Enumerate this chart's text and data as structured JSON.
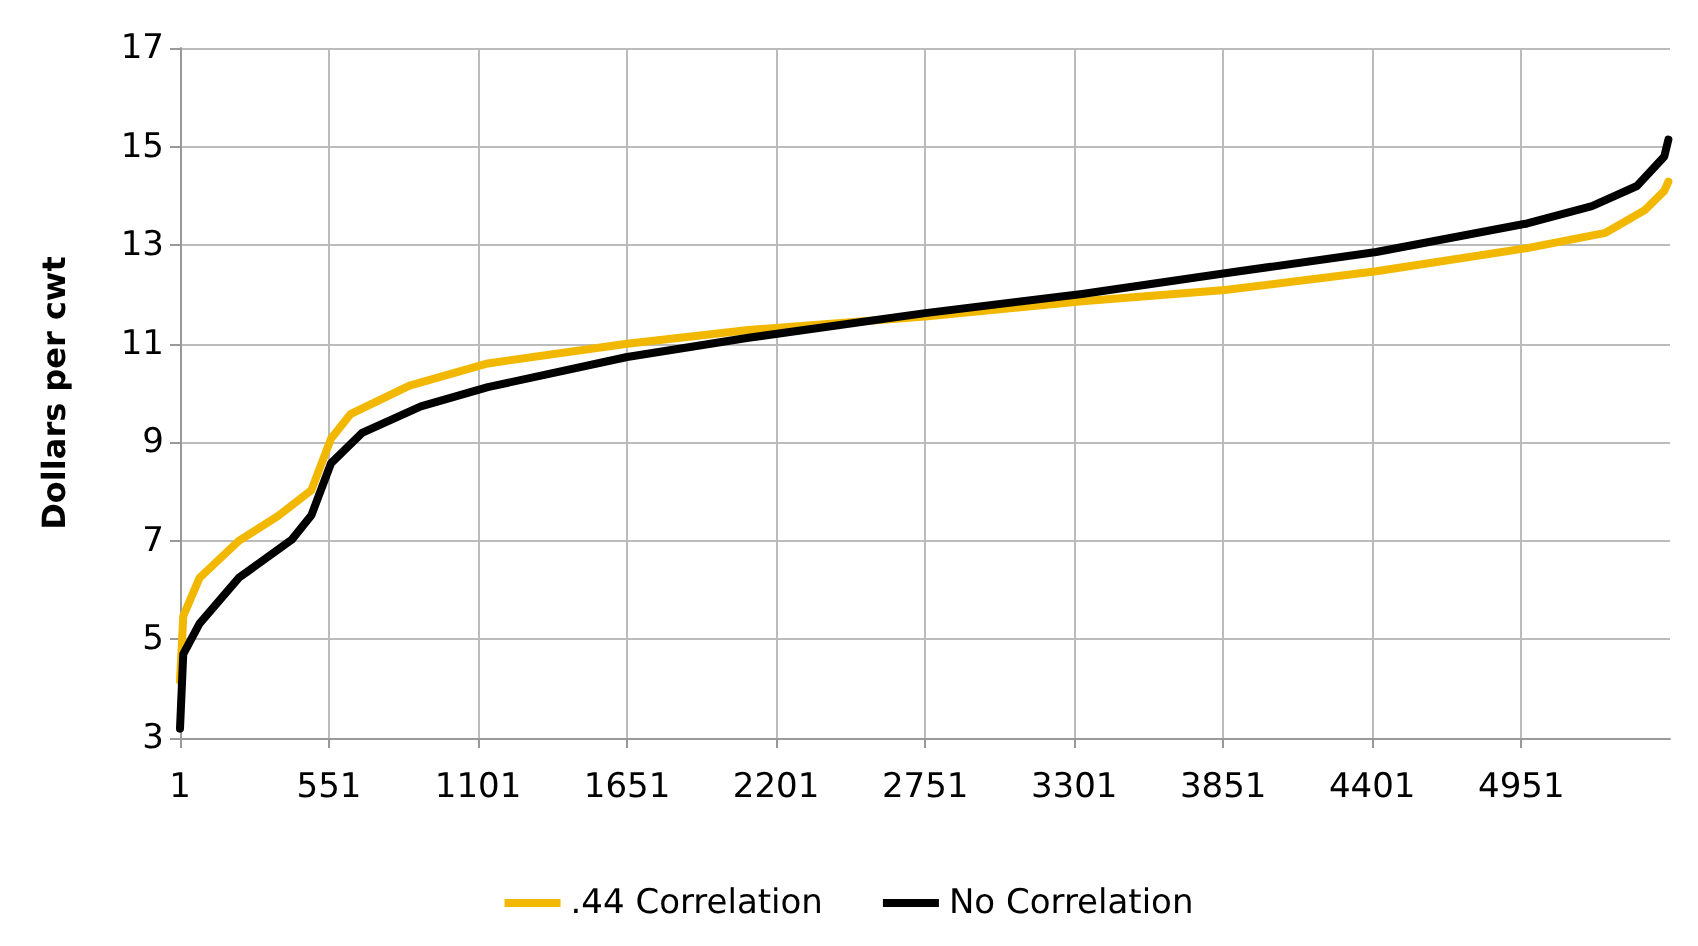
{
  "chart_data": {
    "type": "line",
    "ylabel": "Dollars per cwt",
    "xlim": [
      1,
      5500
    ],
    "ylim": [
      3,
      17
    ],
    "xticks": [
      1,
      551,
      1101,
      1651,
      2201,
      2751,
      3301,
      3851,
      4401,
      4951
    ],
    "yticks": [
      3,
      5,
      7,
      9,
      11,
      13,
      15,
      17
    ],
    "grid": true,
    "legend": "bottom",
    "marker": "none",
    "line_style": "solid",
    "series": [
      {
        "name": ".44 Correlation",
        "color": "#f2b800",
        "x": [
          1,
          13,
          73,
          218,
          362,
          486,
          558,
          630,
          848,
          1137,
          1651,
          2099,
          2751,
          3330,
          3858,
          4416,
          4973,
          5262,
          5407,
          5479,
          5494
        ],
        "values": [
          4.16,
          5.47,
          6.25,
          7.0,
          7.5,
          8.03,
          9.07,
          9.57,
          10.15,
          10.6,
          11.0,
          11.28,
          11.55,
          11.86,
          12.09,
          12.47,
          12.94,
          13.25,
          13.71,
          14.1,
          14.29
        ]
      },
      {
        "name": "No Correlation",
        "color": "#000000",
        "x": [
          1,
          13,
          73,
          218,
          413,
          486,
          558,
          673,
          890,
          1137,
          1651,
          2099,
          2751,
          3330,
          3858,
          4416,
          4973,
          5212,
          5378,
          5479,
          5494
        ],
        "values": [
          3.19,
          4.7,
          5.32,
          6.25,
          7.02,
          7.52,
          8.57,
          9.19,
          9.73,
          10.12,
          10.73,
          11.12,
          11.62,
          12.01,
          12.43,
          12.86,
          13.44,
          13.79,
          14.2,
          14.8,
          15.14
        ]
      }
    ]
  }
}
